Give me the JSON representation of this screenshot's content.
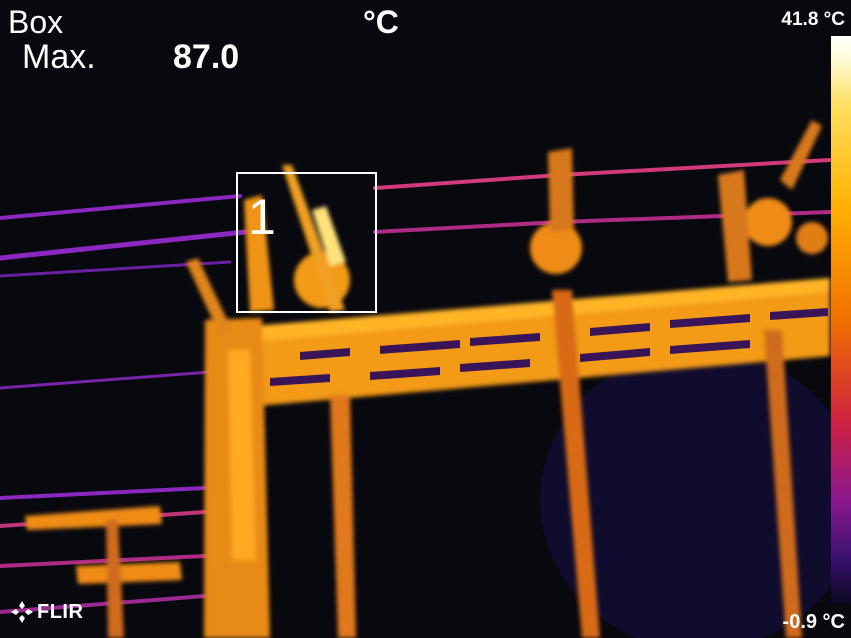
{
  "hud": {
    "measurement_mode": "Box",
    "max_label": "Max.",
    "max_value": "87.0",
    "unit": "°C"
  },
  "scale": {
    "top_label": "41.8 °C",
    "bottom_label": "-0.9 °C",
    "palette": "iron",
    "colors": [
      "#ffffff",
      "#ffe060",
      "#ffb000",
      "#f07000",
      "#d02040",
      "#8a1890",
      "#3a1070",
      "#0a0820"
    ]
  },
  "measurement_box": {
    "id": "1"
  },
  "brand": {
    "logo_text": "FLIR",
    "logo_icon": "flir-snowflake-icon"
  },
  "scene": {
    "background_color": "#08080f",
    "hot_color": "#ffb000",
    "wire_color": "#c03a8a"
  }
}
